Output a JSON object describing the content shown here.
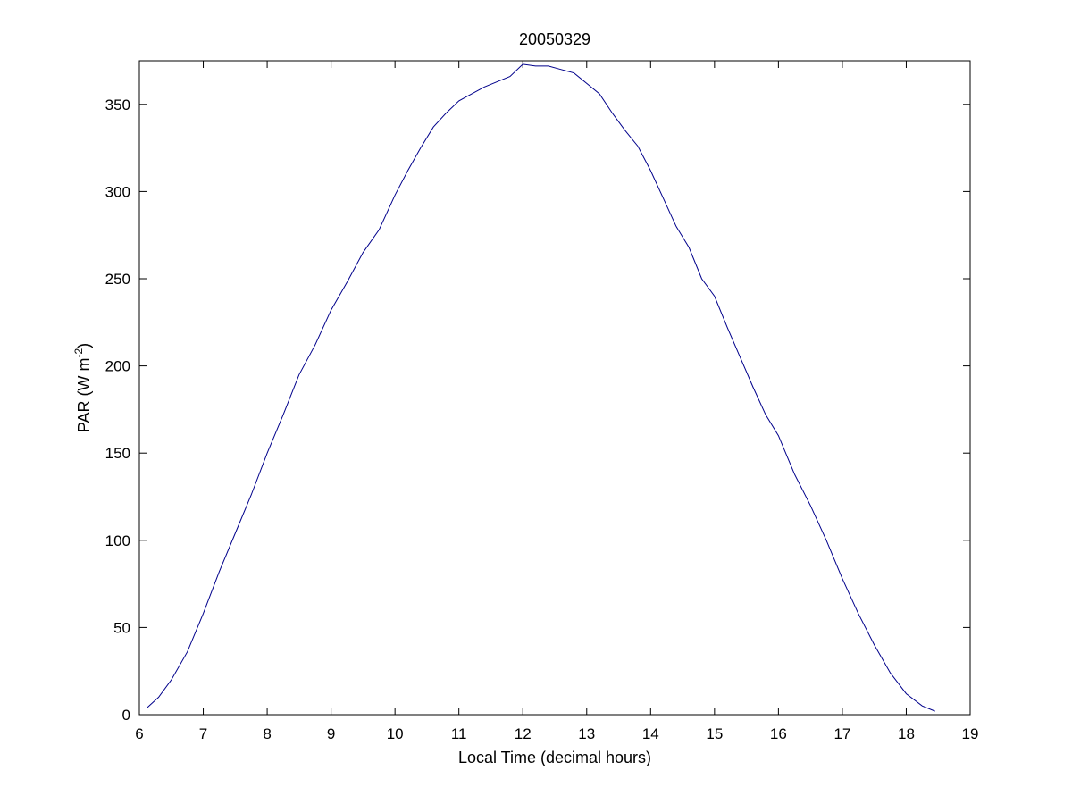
{
  "chart_data": {
    "type": "line",
    "title": "20050329",
    "xlabel": "Local Time (decimal hours)",
    "ylabel": {
      "prefix": "PAR (W m",
      "superscript": "-2",
      "suffix": ")"
    },
    "xlim": [
      6,
      19
    ],
    "ylim": [
      0,
      375
    ],
    "xticks": [
      6,
      7,
      8,
      9,
      10,
      11,
      12,
      13,
      14,
      15,
      16,
      17,
      18,
      19
    ],
    "yticks": [
      0,
      50,
      100,
      150,
      200,
      250,
      300,
      350
    ],
    "grid": false,
    "box": true,
    "line_color": "#00008b",
    "series": [
      {
        "x": [
          6.12,
          6.3,
          6.5,
          6.75,
          7.0,
          7.25,
          7.5,
          7.75,
          8.0,
          8.25,
          8.5,
          8.75,
          9.0,
          9.25,
          9.5,
          9.75,
          10.0,
          10.2,
          10.4,
          10.6,
          10.8,
          11.0,
          11.2,
          11.4,
          11.6,
          11.8,
          12.0,
          12.2,
          12.4,
          12.6,
          12.8,
          13.0,
          13.2,
          13.4,
          13.6,
          13.8,
          14.0,
          14.2,
          14.4,
          14.6,
          14.8,
          15.0,
          15.2,
          15.4,
          15.6,
          15.8,
          16.0,
          16.25,
          16.5,
          16.75,
          17.0,
          17.25,
          17.5,
          17.75,
          18.0,
          18.25,
          18.45
        ],
        "y": [
          4,
          10,
          20,
          36,
          58,
          82,
          104,
          126,
          150,
          172,
          195,
          212,
          232,
          248,
          265,
          278,
          298,
          312,
          325,
          337,
          345,
          352,
          356,
          360,
          363,
          366,
          373,
          372,
          372,
          370,
          368,
          362,
          356,
          345,
          335,
          326,
          312,
          296,
          280,
          268,
          250,
          240,
          222,
          205,
          188,
          172,
          160,
          138,
          120,
          100,
          78,
          58,
          40,
          24,
          12,
          5,
          2
        ]
      }
    ]
  }
}
